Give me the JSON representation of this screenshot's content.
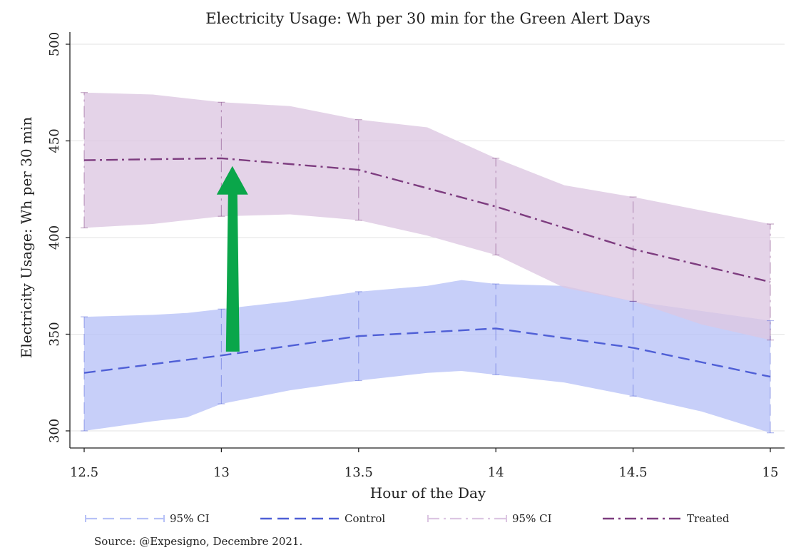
{
  "chart_data": {
    "type": "line",
    "title": "Electricity Usage: Wh per 30 min for the Green Alert Days",
    "xlabel": "Hour of the Day",
    "ylabel": "Electricity Usage: Wh per 30 min",
    "xlim": [
      12.5,
      15
    ],
    "ylim": [
      300,
      500
    ],
    "xticks": [
      12.5,
      13,
      13.5,
      14,
      14.5,
      15
    ],
    "xtick_labels": [
      "12.5",
      "13",
      "13.5",
      "14",
      "14.5",
      "15"
    ],
    "yticks": [
      300,
      350,
      400,
      450,
      500
    ],
    "ytick_labels": [
      "300",
      "350",
      "400",
      "450",
      "500"
    ],
    "grid": "horizontal",
    "legend_position": "bottom",
    "series": [
      {
        "name": "Control",
        "color": "#4f5fd6",
        "line_style": "dashed",
        "x": [
          12.5,
          13,
          13.5,
          14,
          14.5,
          15
        ],
        "y": [
          330,
          339,
          349,
          353,
          343,
          328
        ],
        "ci_name": "95% CI",
        "ci_color": "#b7c1f7",
        "ci_band": {
          "x": [
            12.5,
            12.75,
            12.875,
            13,
            13.25,
            13.5,
            13.75,
            13.875,
            14,
            14.25,
            14.5,
            14.75,
            15
          ],
          "lower": [
            300,
            305,
            307,
            314,
            321,
            326,
            330,
            331,
            329,
            325,
            318,
            310,
            299
          ],
          "upper": [
            359,
            360,
            361,
            363,
            367,
            372,
            375,
            378,
            376,
            375,
            367,
            362,
            357
          ]
        },
        "ci_bars": {
          "lower": [
            300,
            314,
            326,
            329,
            318,
            299
          ],
          "upper": [
            359,
            363,
            372,
            376,
            367,
            357
          ]
        }
      },
      {
        "name": "Treated",
        "color": "#7d3c7f",
        "line_style": "dash-dot",
        "x": [
          12.5,
          13,
          13.5,
          14,
          14.5,
          15
        ],
        "y": [
          440,
          441,
          435,
          416,
          394,
          377
        ],
        "ci_name": "95% CI",
        "ci_color": "#dcc6e2",
        "ci_band": {
          "x": [
            12.5,
            12.75,
            13,
            13.25,
            13.5,
            13.75,
            14,
            14.25,
            14.5,
            14.75,
            15
          ],
          "lower": [
            405,
            407,
            411,
            412,
            409,
            401,
            391,
            374,
            367,
            355,
            347
          ],
          "upper": [
            475,
            474,
            470,
            468,
            461,
            457,
            441,
            427,
            421,
            414,
            407
          ]
        },
        "ci_bars": {
          "lower": [
            405,
            411,
            409,
            391,
            367,
            347
          ],
          "upper": [
            475,
            470,
            461,
            441,
            421,
            407
          ]
        }
      }
    ],
    "annotations": [
      {
        "type": "arrow",
        "color": "#0aa64a",
        "from": {
          "x": 13.04,
          "y": 341
        },
        "to": {
          "x": 13.04,
          "y": 437
        }
      }
    ],
    "source_note": "Source: @Expesigno, Decembre 2021."
  }
}
